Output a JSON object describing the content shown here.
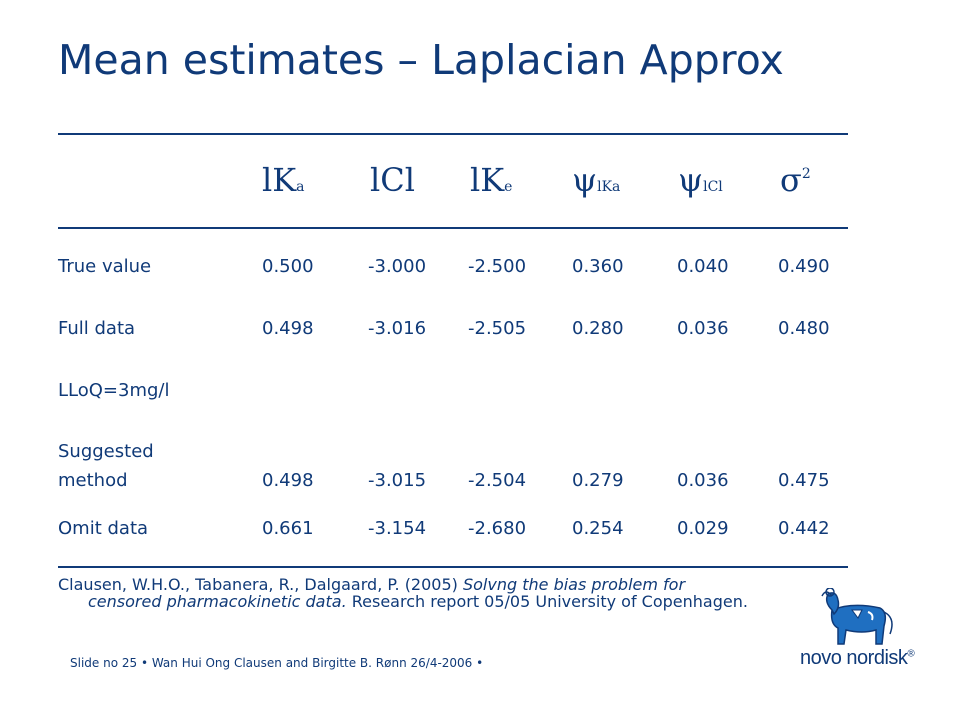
{
  "slide": {
    "title": "Mean estimates – Laplacian Approx"
  },
  "table": {
    "headers": [
      {
        "base": "lK",
        "sub": "a",
        "sup": ""
      },
      {
        "base": "lCl",
        "sub": "",
        "sup": ""
      },
      {
        "base": "lK",
        "sub": "e",
        "sup": ""
      },
      {
        "base": "ψ",
        "sub": "lKa",
        "sup": ""
      },
      {
        "base": "ψ",
        "sub": "lCl",
        "sup": ""
      },
      {
        "base": "σ",
        "sub": "",
        "sup": "2"
      }
    ],
    "rows": [
      {
        "label": "True value",
        "values": [
          "0.500",
          "-3.000",
          "-2.500",
          "0.360",
          "0.040",
          "0.490"
        ]
      },
      {
        "label": "Full data",
        "values": [
          "0.498",
          "-3.016",
          "-2.505",
          "0.280",
          "0.036",
          "0.480"
        ]
      },
      {
        "label": "LLoQ=3mg/l",
        "values": []
      },
      {
        "label": "Suggested",
        "values": []
      },
      {
        "label": "method",
        "values": [
          "0.498",
          "-3.015",
          "-2.504",
          "0.279",
          "0.036",
          "0.475"
        ]
      },
      {
        "label": "Omit data",
        "values": [
          "0.661",
          "-3.154",
          "-2.680",
          "0.254",
          "0.029",
          "0.442"
        ]
      }
    ]
  },
  "reference": {
    "authors": "Clausen, W.H.O., Tabanera, R., Dalgaard, P. (2005) ",
    "title_part1": "Solvng the bias problem for",
    "title_part2": "censored pharmacokinetic data.",
    "rest": " Research report 05/05 University of Copenhagen."
  },
  "footer": {
    "text": "Slide no 25 • Wan Hui Ong Clausen and Birgitte B. Rønn 26/4-2006 •"
  },
  "brand": {
    "name": "novo nordisk",
    "mark": "®",
    "color": "#103a78"
  }
}
